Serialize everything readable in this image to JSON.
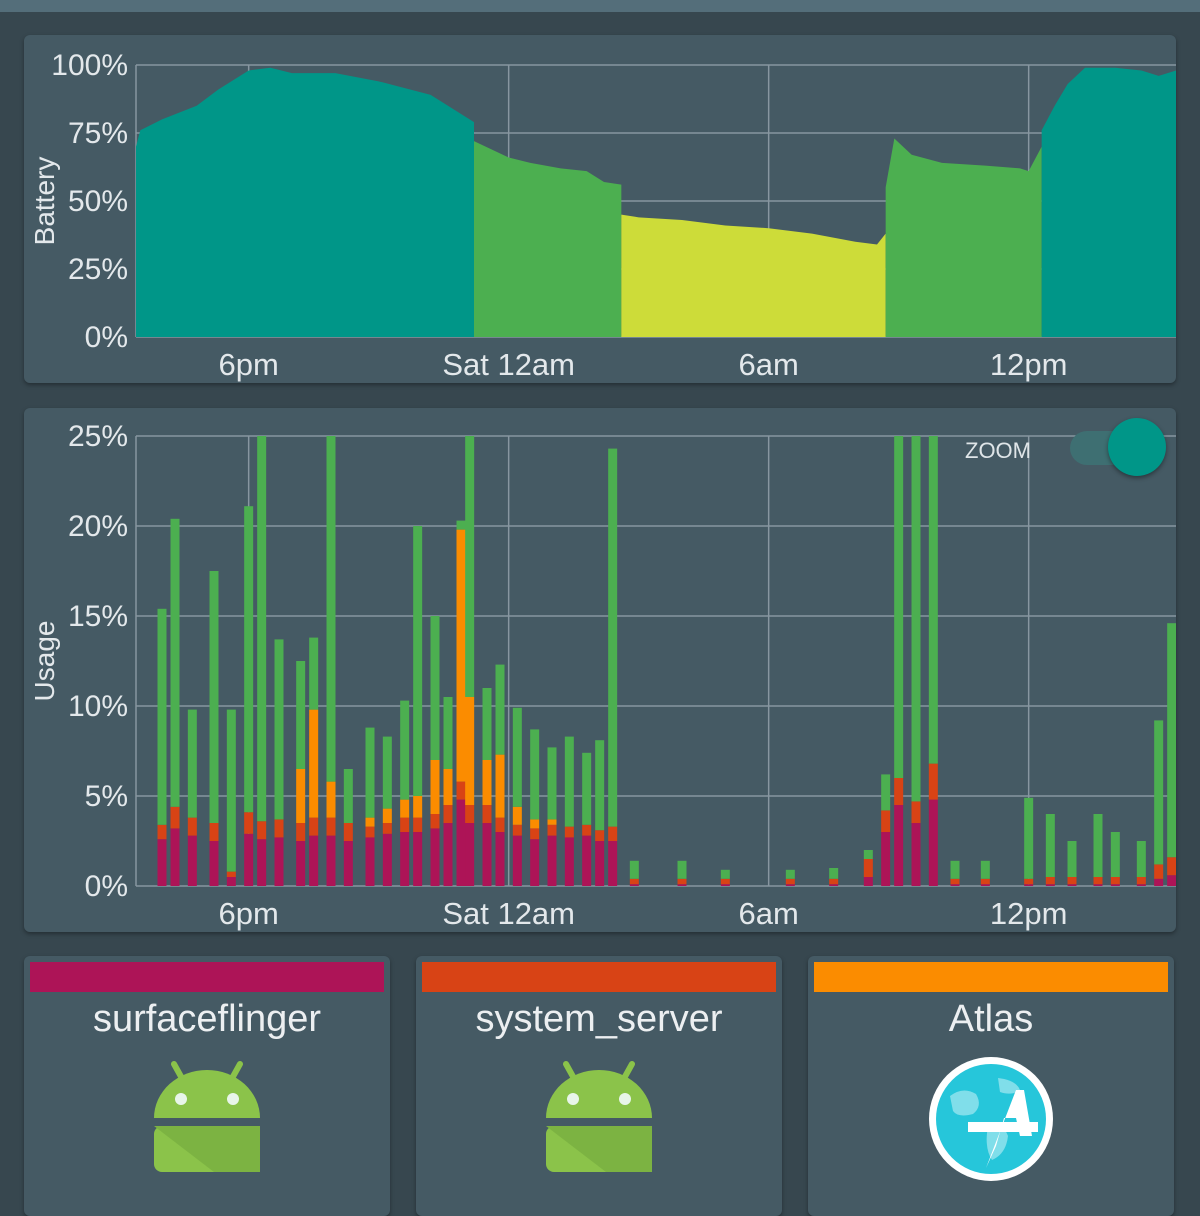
{
  "colors": {
    "background": "#37474f",
    "card": "#455a64",
    "grid": "#8796a0",
    "battery_teal": "#009688",
    "battery_green": "#4caf50",
    "battery_lime": "#cddc39",
    "usage_green": "#4caf50",
    "surfaceflinger": "#ad1457",
    "system_server": "#d84315",
    "atlas": "#fb8c00",
    "zoom_accent": "#009688"
  },
  "zoom": {
    "label": "ZOOM",
    "enabled": true
  },
  "processes": [
    {
      "name": "surfaceflinger",
      "color": "#ad1457",
      "icon": "android-icon"
    },
    {
      "name": "system_server",
      "color": "#d84315",
      "icon": "android-icon"
    },
    {
      "name": "Atlas",
      "color": "#fb8c00",
      "icon": "atlas-globe-icon"
    }
  ],
  "chart_data": [
    {
      "type": "area",
      "ylabel": "Battery",
      "yticks": [
        "0%",
        "25%",
        "50%",
        "75%",
        "100%"
      ],
      "ylim": [
        0,
        100
      ],
      "xticks": [
        "6pm",
        "Sat 12am",
        "6am",
        "12pm"
      ],
      "xtick_hours": [
        18,
        24,
        30,
        36
      ],
      "xlim_hours": [
        15.4,
        39.4
      ],
      "grid": true,
      "segments": [
        {
          "color": "#009688",
          "points": [
            [
              15.4,
              70
            ],
            [
              15.5,
              76
            ],
            [
              16.0,
              80
            ],
            [
              16.8,
              85
            ],
            [
              17.3,
              91
            ],
            [
              18.0,
              98
            ],
            [
              18.5,
              99
            ],
            [
              19.0,
              97
            ],
            [
              20.0,
              97
            ],
            [
              21.0,
              94
            ],
            [
              22.2,
              89
            ],
            [
              23.2,
              79
            ]
          ]
        },
        {
          "color": "#4caf50",
          "points": [
            [
              23.2,
              72
            ],
            [
              24.0,
              66
            ],
            [
              24.5,
              64
            ],
            [
              25.2,
              62
            ],
            [
              25.8,
              61
            ],
            [
              26.2,
              57
            ],
            [
              26.6,
              56
            ]
          ]
        },
        {
          "color": "#cddc39",
          "points": [
            [
              26.6,
              45
            ],
            [
              27.0,
              44
            ],
            [
              28.0,
              43
            ],
            [
              29.0,
              41
            ],
            [
              30.0,
              40
            ],
            [
              31.0,
              38
            ],
            [
              32.0,
              35
            ],
            [
              32.5,
              34
            ],
            [
              32.7,
              38
            ]
          ]
        },
        {
          "color": "#4caf50",
          "points": [
            [
              32.7,
              55
            ],
            [
              32.9,
              73
            ],
            [
              33.3,
              67
            ],
            [
              34.0,
              64
            ],
            [
              35.0,
              63
            ],
            [
              35.8,
              62
            ],
            [
              36.0,
              61
            ],
            [
              36.3,
              70
            ]
          ]
        },
        {
          "color": "#009688",
          "points": [
            [
              36.3,
              76
            ],
            [
              36.6,
              85
            ],
            [
              36.9,
              93
            ],
            [
              37.3,
              99
            ],
            [
              38.0,
              99
            ],
            [
              38.6,
              98
            ],
            [
              39.0,
              96
            ],
            [
              39.4,
              98
            ]
          ]
        }
      ]
    },
    {
      "type": "bar",
      "ylabel": "Usage",
      "yticks": [
        "0%",
        "5%",
        "10%",
        "15%",
        "20%",
        "25%"
      ],
      "ylim": [
        0,
        25
      ],
      "xticks": [
        "6pm",
        "Sat 12am",
        "6am",
        "12pm"
      ],
      "xtick_hours": [
        18,
        24,
        30,
        36
      ],
      "xlim_hours": [
        15.4,
        39.4
      ],
      "grid": true,
      "series": [
        {
          "name": "surfaceflinger",
          "color": "#ad1457"
        },
        {
          "name": "system_server",
          "color": "#d84315"
        },
        {
          "name": "Atlas",
          "color": "#fb8c00"
        },
        {
          "color": "#4caf50"
        }
      ],
      "bars": [
        [
          16.0,
          2.6,
          0.8,
          0,
          12.0
        ],
        [
          16.3,
          3.2,
          1.2,
          0,
          16.0
        ],
        [
          16.7,
          2.8,
          1.0,
          0,
          6.0
        ],
        [
          17.2,
          2.5,
          1.0,
          0,
          14.0
        ],
        [
          17.6,
          0.5,
          0.3,
          0,
          9.0
        ],
        [
          18.0,
          2.9,
          1.2,
          0,
          17.0
        ],
        [
          18.3,
          2.6,
          1.0,
          0,
          25.0
        ],
        [
          18.7,
          2.7,
          1.0,
          0,
          10.0
        ],
        [
          19.2,
          2.5,
          1.0,
          3.0,
          6.0
        ],
        [
          19.5,
          2.8,
          1.0,
          6.0,
          4.0
        ],
        [
          19.9,
          2.8,
          1.0,
          2.0,
          25.0
        ],
        [
          20.3,
          2.5,
          1.0,
          0,
          3.0
        ],
        [
          20.8,
          2.7,
          0.6,
          0.5,
          5.0
        ],
        [
          21.2,
          2.9,
          0.6,
          0.8,
          4.0
        ],
        [
          21.6,
          3.0,
          0.8,
          1.0,
          5.5
        ],
        [
          21.9,
          3.0,
          0.8,
          1.2,
          15.0
        ],
        [
          22.3,
          3.2,
          0.8,
          3.0,
          8.0
        ],
        [
          22.6,
          3.5,
          1.0,
          2.0,
          4.0
        ],
        [
          22.9,
          4.8,
          1.0,
          14.0,
          0.5
        ],
        [
          23.1,
          3.5,
          1.0,
          6.0,
          25.0
        ],
        [
          23.5,
          3.5,
          1.0,
          2.5,
          4.0
        ],
        [
          23.8,
          3.0,
          0.8,
          3.5,
          5.0
        ],
        [
          24.2,
          2.8,
          0.6,
          1.0,
          5.5
        ],
        [
          24.6,
          2.6,
          0.6,
          0.5,
          5.0
        ],
        [
          25.0,
          2.8,
          0.6,
          0.3,
          4.0
        ],
        [
          25.4,
          2.7,
          0.6,
          0,
          5.0
        ],
        [
          25.8,
          2.8,
          0.6,
          0,
          4.0
        ],
        [
          26.1,
          2.5,
          0.6,
          0,
          5.0
        ],
        [
          26.4,
          2.5,
          0.8,
          0,
          21.0
        ],
        [
          26.9,
          0.1,
          0.3,
          0,
          1.0
        ],
        [
          28.0,
          0.1,
          0.3,
          0,
          1.0
        ],
        [
          29.0,
          0.1,
          0.3,
          0,
          0.5
        ],
        [
          30.5,
          0.1,
          0.3,
          0,
          0.5
        ],
        [
          31.5,
          0.1,
          0.3,
          0,
          0.6
        ],
        [
          32.3,
          0.5,
          1.0,
          0,
          0.5
        ],
        [
          32.7,
          3.0,
          1.2,
          0,
          2.0
        ],
        [
          33.0,
          4.5,
          1.5,
          0,
          25.0
        ],
        [
          33.4,
          3.5,
          1.2,
          0,
          25.0
        ],
        [
          33.8,
          4.8,
          2.0,
          0,
          25.0
        ],
        [
          34.3,
          0.1,
          0.3,
          0,
          1.0
        ],
        [
          35.0,
          0.1,
          0.3,
          0,
          1.0
        ],
        [
          36.0,
          0.1,
          0.3,
          0,
          4.5
        ],
        [
          36.5,
          0.1,
          0.4,
          0,
          3.5
        ],
        [
          37.0,
          0.1,
          0.4,
          0,
          2.0
        ],
        [
          37.6,
          0.1,
          0.4,
          0,
          3.5
        ],
        [
          38.0,
          0.1,
          0.4,
          0,
          2.5
        ],
        [
          38.6,
          0.1,
          0.4,
          0,
          2.0
        ],
        [
          39.0,
          0.4,
          0.8,
          0,
          8.0
        ],
        [
          39.3,
          0.6,
          1.0,
          0,
          13.0
        ]
      ]
    }
  ]
}
